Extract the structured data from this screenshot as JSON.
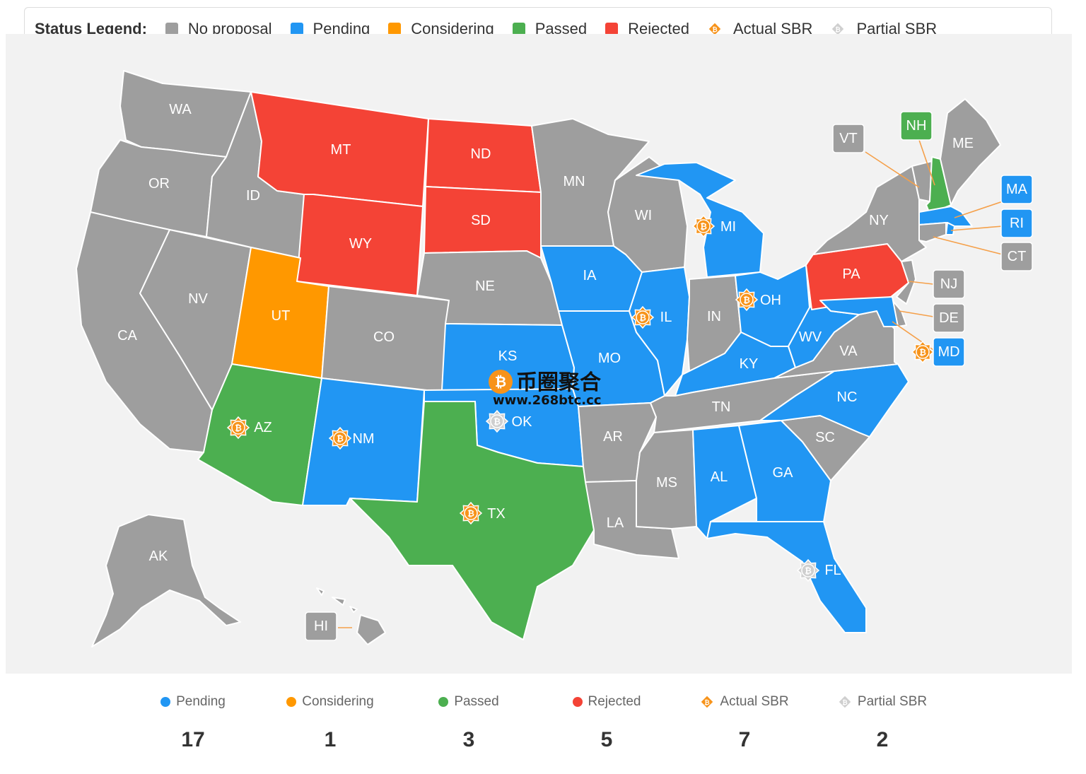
{
  "legend": {
    "title": "Status Legend:",
    "items": [
      {
        "label": "No proposal",
        "color": "#9e9e9e",
        "kind": "swatch"
      },
      {
        "label": "Pending",
        "color": "#2196f3",
        "kind": "swatch"
      },
      {
        "label": "Considering",
        "color": "#ff9800",
        "kind": "swatch"
      },
      {
        "label": "Passed",
        "color": "#4caf50",
        "kind": "swatch"
      },
      {
        "label": "Rejected",
        "color": "#f44336",
        "kind": "swatch"
      },
      {
        "label": "Actual SBR",
        "color": "#f7931a",
        "kind": "bitcoin-icon"
      },
      {
        "label": "Partial SBR",
        "color": "#cfcfcf",
        "kind": "bitcoin-icon"
      }
    ]
  },
  "colors": {
    "none": "#9e9e9e",
    "pending": "#2196f3",
    "considering": "#ff9800",
    "passed": "#4caf50",
    "rejected": "#f44336",
    "actual_sbr": "#f7931a",
    "partial_sbr": "#cfcfcf",
    "leader": "#f5a04a"
  },
  "states": {
    "WA": {
      "status": "none"
    },
    "OR": {
      "status": "none"
    },
    "CA": {
      "status": "none"
    },
    "NV": {
      "status": "none"
    },
    "ID": {
      "status": "none"
    },
    "MT": {
      "status": "rejected"
    },
    "WY": {
      "status": "rejected"
    },
    "UT": {
      "status": "considering"
    },
    "AZ": {
      "status": "passed",
      "sbr": "actual"
    },
    "CO": {
      "status": "none"
    },
    "NM": {
      "status": "pending",
      "sbr": "actual"
    },
    "ND": {
      "status": "rejected"
    },
    "SD": {
      "status": "rejected"
    },
    "NE": {
      "status": "none"
    },
    "KS": {
      "status": "pending"
    },
    "OK": {
      "status": "pending",
      "sbr": "partial"
    },
    "TX": {
      "status": "passed",
      "sbr": "actual"
    },
    "MN": {
      "status": "none"
    },
    "IA": {
      "status": "pending"
    },
    "MO": {
      "status": "pending"
    },
    "AR": {
      "status": "none"
    },
    "LA": {
      "status": "none"
    },
    "WI": {
      "status": "none"
    },
    "IL": {
      "status": "pending",
      "sbr": "actual"
    },
    "MI": {
      "status": "pending",
      "sbr": "actual"
    },
    "IN": {
      "status": "none"
    },
    "OH": {
      "status": "pending",
      "sbr": "actual"
    },
    "KY": {
      "status": "pending"
    },
    "TN": {
      "status": "none"
    },
    "MS": {
      "status": "none"
    },
    "AL": {
      "status": "pending"
    },
    "GA": {
      "status": "pending"
    },
    "FL": {
      "status": "pending",
      "sbr": "partial"
    },
    "SC": {
      "status": "none"
    },
    "NC": {
      "status": "pending"
    },
    "VA": {
      "status": "none"
    },
    "WV": {
      "status": "pending"
    },
    "PA": {
      "status": "rejected"
    },
    "NY": {
      "status": "none"
    },
    "VT": {
      "status": "none"
    },
    "NH": {
      "status": "passed"
    },
    "ME": {
      "status": "none"
    },
    "MA": {
      "status": "pending"
    },
    "RI": {
      "status": "pending"
    },
    "CT": {
      "status": "none"
    },
    "NJ": {
      "status": "none"
    },
    "DE": {
      "status": "none"
    },
    "MD": {
      "status": "pending",
      "sbr": "actual"
    },
    "AK": {
      "status": "none"
    },
    "HI": {
      "status": "none"
    }
  },
  "watermark": {
    "name": "币圈聚合",
    "url": "www.268btc.cc"
  },
  "stats": [
    {
      "label": "Pending",
      "value": "17",
      "color": "#2196f3",
      "kind": "dot"
    },
    {
      "label": "Considering",
      "value": "1",
      "color": "#ff9800",
      "kind": "dot"
    },
    {
      "label": "Passed",
      "value": "3",
      "color": "#4caf50",
      "kind": "dot"
    },
    {
      "label": "Rejected",
      "value": "5",
      "color": "#f44336",
      "kind": "dot"
    },
    {
      "label": "Actual SBR",
      "value": "7",
      "color": "#f7931a",
      "kind": "bitcoin-icon"
    },
    {
      "label": "Partial SBR",
      "value": "2",
      "color": "#cfcfcf",
      "kind": "bitcoin-icon"
    }
  ]
}
